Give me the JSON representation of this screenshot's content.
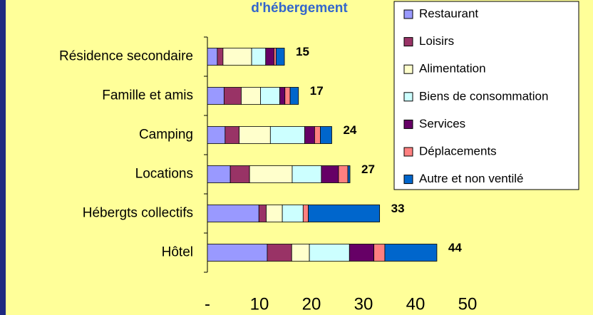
{
  "chart_data": {
    "type": "stacked_bar_horizontal",
    "title": "d'hébergement",
    "categories": [
      "Résidence secondaire",
      "Famille et amis",
      "Camping",
      "Locations",
      "Hébergts collectifs",
      "Hôtel"
    ],
    "series": [
      {
        "name": "Restaurant",
        "color": "#9999ff",
        "values": [
          1.9,
          3.2,
          3.4,
          4.4,
          9.9,
          11.5
        ]
      },
      {
        "name": "Loisirs",
        "color": "#993366",
        "values": [
          1.1,
          3.3,
          2.7,
          3.7,
          1.4,
          4.7
        ]
      },
      {
        "name": "Alimentation",
        "color": "#ffffcc",
        "values": [
          5.5,
          3.7,
          6.0,
          8.2,
          3.1,
          3.4
        ]
      },
      {
        "name": "Biens de consommation",
        "color": "#ccffff",
        "values": [
          2.7,
          3.7,
          6.6,
          5.6,
          4.0,
          7.7
        ]
      },
      {
        "name": "Services",
        "color": "#660066",
        "values": [
          1.6,
          1.0,
          1.9,
          3.3,
          0,
          4.7
        ]
      },
      {
        "name": "Déplacements",
        "color": "#ff8080",
        "values": [
          0.4,
          1.0,
          1.1,
          1.8,
          1.0,
          2.1
        ]
      },
      {
        "name": "Autre et non ventilé",
        "color": "#0066cc",
        "values": [
          1.6,
          1.6,
          2.2,
          0.4,
          13.7,
          10.0
        ]
      }
    ],
    "totals": [
      15,
      17,
      24,
      27,
      33,
      44
    ],
    "xlim": [
      0,
      50
    ],
    "xticks": [
      {
        "value": 0,
        "label": "-"
      },
      10,
      20,
      30,
      40,
      50
    ]
  }
}
